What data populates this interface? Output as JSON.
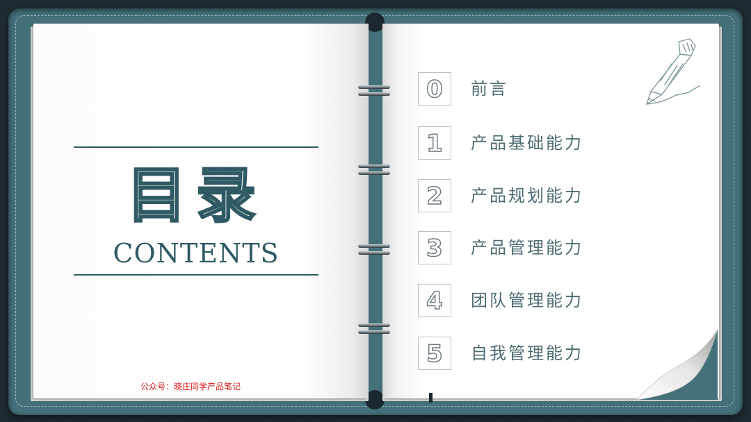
{
  "left_page": {
    "title_cn": "目录",
    "title_en": "CONTENTS",
    "footer_note": "公众号：晓庄同学产品笔记"
  },
  "toc": [
    {
      "number": "0",
      "label": "前言"
    },
    {
      "number": "1",
      "label": "产品基础能力"
    },
    {
      "number": "2",
      "label": "产品规划能力"
    },
    {
      "number": "3",
      "label": "产品管理能力"
    },
    {
      "number": "4",
      "label": "团队管理能力"
    },
    {
      "number": "5",
      "label": "自我管理能力"
    }
  ],
  "icons": {
    "decoration": "pencil-icon",
    "corner": "page-curl-icon"
  },
  "colors": {
    "cover": "#44707a",
    "background": "#1c2830",
    "accent": "#2f5a64",
    "label_text": "#4d6b73",
    "footer_note": "#d91d1d"
  }
}
